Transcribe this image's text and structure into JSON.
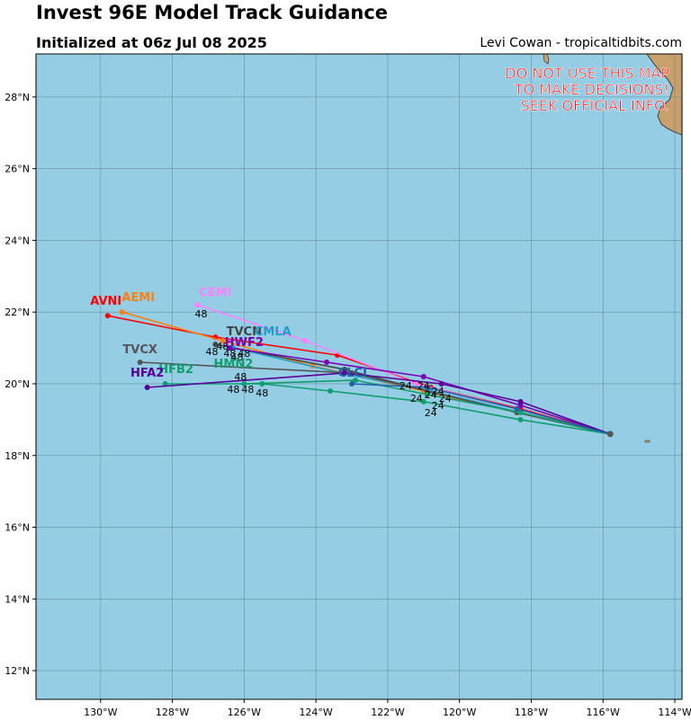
{
  "header": {
    "title": "Invest 96E Model Track Guidance",
    "subtitle": "Initialized at 06z Jul 08 2025",
    "credit": "Levi Cowan - tropicaltidbits.com"
  },
  "warning": [
    "DO NOT USE THIS MAP",
    "TO MAKE DECISIONS!",
    "SEEK OFFICIAL INFO."
  ],
  "colors": {
    "ocean": "#95cee4",
    "land": "#c8a06c",
    "grid": "#5a7f8c",
    "warning": "#ff0000"
  },
  "chart_data": {
    "type": "line",
    "xlim": [
      -131.8,
      -113.8
    ],
    "ylim": [
      11.2,
      29.2
    ],
    "x_ticks": [
      -130,
      -128,
      -126,
      -124,
      -122,
      -120,
      -118,
      -116,
      -114
    ],
    "x_tick_labels": [
      "130°W",
      "128°W",
      "126°W",
      "124°W",
      "122°W",
      "120°W",
      "118°W",
      "116°W",
      "114°W"
    ],
    "y_ticks": [
      12,
      14,
      16,
      18,
      20,
      22,
      24,
      26,
      28
    ],
    "y_tick_labels": [
      "12°N",
      "14°N",
      "16°N",
      "18°N",
      "20°N",
      "22°N",
      "24°N",
      "26°N",
      "28°N"
    ],
    "grid": true,
    "origin": [
      -115.8,
      18.6
    ],
    "series": [
      {
        "name": "AVNI",
        "color": "#ff0000",
        "points": [
          [
            -115.8,
            18.6
          ],
          [
            -118.3,
            19.3
          ],
          [
            -120.8,
            19.9
          ],
          [
            -123.4,
            20.8
          ],
          [
            -126.8,
            21.3
          ],
          [
            -129.8,
            21.9
          ]
        ],
        "label_at": [
          -129.85,
          22.2
        ]
      },
      {
        "name": "AEMI",
        "color": "#ff7f0e",
        "points": [
          [
            -115.8,
            18.6
          ],
          [
            -118.4,
            19.2
          ],
          [
            -121.0,
            19.8
          ],
          [
            -124.1,
            20.5
          ],
          [
            -126.6,
            21.2
          ],
          [
            -129.4,
            22.0
          ]
        ],
        "label_at": [
          -128.95,
          22.3
        ]
      },
      {
        "name": "CEMI",
        "color": "#ff80ff",
        "points": [
          [
            -115.8,
            18.6
          ],
          [
            -118.4,
            19.3
          ],
          [
            -121.2,
            20.0
          ],
          [
            -124.3,
            21.2
          ],
          [
            -127.3,
            22.2
          ]
        ],
        "label_at": [
          -126.8,
          22.45
        ]
      },
      {
        "name": "TVCN",
        "color": "#444444",
        "points": [
          [
            -115.8,
            18.6
          ],
          [
            -118.4,
            19.2
          ],
          [
            -120.9,
            19.8
          ],
          [
            -123.2,
            20.4
          ],
          [
            -126.8,
            21.1
          ]
        ],
        "label_at": [
          -126.0,
          21.35
        ]
      },
      {
        "name": "CMLA",
        "color": "#1f9ec8",
        "points": [
          [
            -115.8,
            18.6
          ],
          [
            -118.3,
            19.2
          ],
          [
            -120.8,
            19.8
          ],
          [
            -123.3,
            20.3
          ],
          [
            -126.3,
            21.0
          ]
        ],
        "label_at": [
          -125.2,
          21.35
        ]
      },
      {
        "name": "HWF2",
        "color": "#7a00b4",
        "points": [
          [
            -115.8,
            18.6
          ],
          [
            -118.3,
            19.4
          ],
          [
            -121.0,
            20.2
          ],
          [
            -123.7,
            20.6
          ],
          [
            -126.4,
            21.0
          ]
        ],
        "label_at": [
          -126.0,
          21.05
        ]
      },
      {
        "name": "TVCX",
        "color": "#555555",
        "points": [
          [
            -115.8,
            18.6
          ],
          [
            -118.4,
            19.2
          ],
          [
            -120.9,
            19.8
          ],
          [
            -123.0,
            20.3
          ],
          [
            -128.9,
            20.6
          ]
        ],
        "label_at": [
          -128.9,
          20.85
        ]
      },
      {
        "name": "HFB2",
        "color": "#0f9e6e",
        "points": [
          [
            -115.8,
            18.6
          ],
          [
            -118.3,
            19.0
          ],
          [
            -121.0,
            19.5
          ],
          [
            -123.6,
            19.8
          ],
          [
            -125.5,
            20.0
          ],
          [
            -128.2,
            20.0
          ]
        ],
        "label_at": [
          -127.9,
          20.3
        ]
      },
      {
        "name": "HMN2",
        "color": "#0f9e6e",
        "points": [
          [
            -115.8,
            18.6
          ],
          [
            -118.3,
            19.2
          ],
          [
            -120.9,
            19.7
          ],
          [
            -122.9,
            20.1
          ],
          [
            -126.0,
            20.0
          ]
        ],
        "label_at": [
          -126.3,
          20.45
        ]
      },
      {
        "name": "HFA2",
        "color": "#5a009a",
        "points": [
          [
            -115.8,
            18.6
          ],
          [
            -118.3,
            19.5
          ],
          [
            -120.5,
            20.0
          ],
          [
            -123.2,
            20.3
          ],
          [
            -128.7,
            19.9
          ]
        ],
        "label_at": [
          -128.7,
          20.2
        ]
      },
      {
        "name": "CLCI",
        "color": "#1f60a8",
        "points": [
          [
            -115.8,
            18.6
          ],
          [
            -118.4,
            19.3
          ],
          [
            -120.9,
            19.9
          ],
          [
            -123.0,
            20.0
          ]
        ],
        "label_at": [
          -122.98,
          20.2
        ]
      }
    ],
    "hour_labels": [
      {
        "text": "48",
        "lon": -127.2,
        "lat": 21.85
      },
      {
        "text": "48",
        "lon": -126.6,
        "lat": 20.95
      },
      {
        "text": "48",
        "lon": -126.9,
        "lat": 20.8
      },
      {
        "text": "48",
        "lon": -126.4,
        "lat": 20.75
      },
      {
        "text": "48",
        "lon": -126.0,
        "lat": 20.75
      },
      {
        "text": "48",
        "lon": -126.2,
        "lat": 20.65
      },
      {
        "text": "48",
        "lon": -126.1,
        "lat": 20.1
      },
      {
        "text": "48",
        "lon": -126.3,
        "lat": 19.75
      },
      {
        "text": "48",
        "lon": -125.9,
        "lat": 19.75
      },
      {
        "text": "48",
        "lon": -125.5,
        "lat": 19.65
      },
      {
        "text": "24",
        "lon": -121.5,
        "lat": 19.85
      },
      {
        "text": "24",
        "lon": -121.0,
        "lat": 19.85
      },
      {
        "text": "24",
        "lon": -120.6,
        "lat": 19.7
      },
      {
        "text": "24",
        "lon": -120.8,
        "lat": 19.6
      },
      {
        "text": "24",
        "lon": -120.4,
        "lat": 19.5
      },
      {
        "text": "24",
        "lon": -121.2,
        "lat": 19.5
      },
      {
        "text": "24",
        "lon": -120.6,
        "lat": 19.3
      },
      {
        "text": "24",
        "lon": -120.8,
        "lat": 19.1
      }
    ]
  }
}
